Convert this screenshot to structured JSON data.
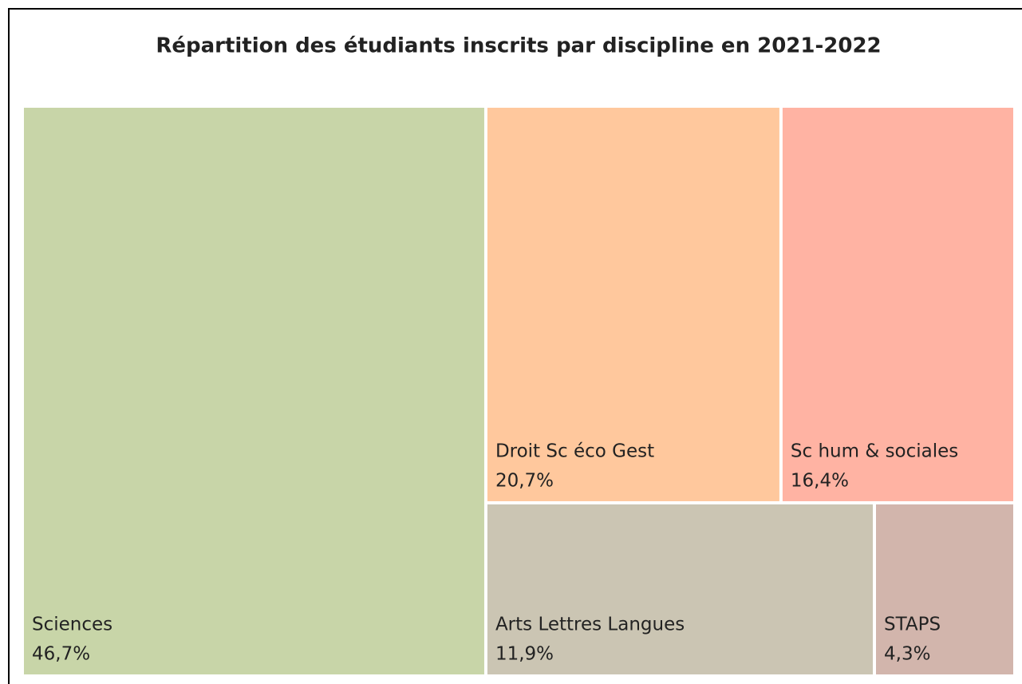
{
  "chart_data": {
    "type": "treemap",
    "title": "Répartition des étudiants inscrits par discipline en 2021-2022",
    "categories": [
      "Sciences",
      "Droit Sc éco Gest",
      "Sc hum & sociales",
      "Arts Lettres Langues",
      "STAPS"
    ],
    "values": [
      46.7,
      20.7,
      16.4,
      11.9,
      4.3
    ],
    "value_labels": [
      "46,7%",
      "20,7%",
      "16,4%",
      "11,9%",
      "4,3%"
    ],
    "colors": [
      "#c8d5a8",
      "#ffc89d",
      "#ffb3a3",
      "#cbc5b3",
      "#d2b5ac"
    ]
  }
}
